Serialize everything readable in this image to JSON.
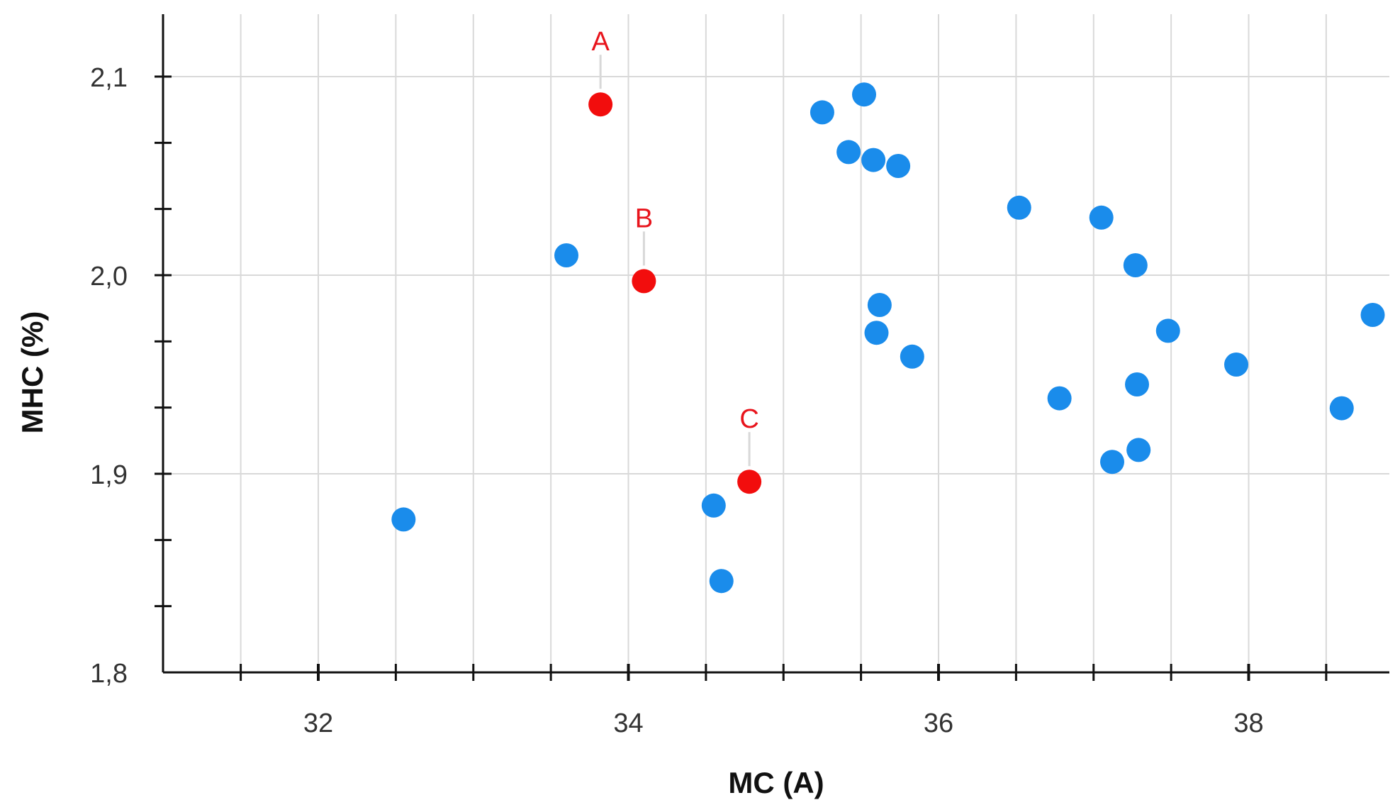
{
  "chart_data": {
    "type": "scatter",
    "xlabel": "MC (A)",
    "ylabel": "MHC (%)",
    "xlim": [
      31,
      38.9
    ],
    "ylim": [
      1.8,
      2.13
    ],
    "x_major_ticks": [
      32,
      34,
      36,
      38
    ],
    "x_tick_labels": [
      "32",
      "34",
      "36",
      "38"
    ],
    "y_major_ticks": [
      1.8,
      1.9,
      2.0,
      2.1
    ],
    "y_tick_labels": [
      "1,8",
      "1,9",
      "2,0",
      "2,1"
    ],
    "grid": true,
    "colors": {
      "series": "#1a8ceb",
      "highlight": "#f20d0d",
      "highlight_text": "#e8141c",
      "grid": "#d9d9d9",
      "axis": "#111111"
    },
    "series": [
      {
        "values": [
          {
            "x": 32.55,
            "y": 1.877
          },
          {
            "x": 33.6,
            "y": 2.01
          },
          {
            "x": 34.55,
            "y": 1.884
          },
          {
            "x": 34.6,
            "y": 1.846
          },
          {
            "x": 35.25,
            "y": 2.082
          },
          {
            "x": 35.42,
            "y": 2.062
          },
          {
            "x": 35.52,
            "y": 2.091
          },
          {
            "x": 35.58,
            "y": 2.058
          },
          {
            "x": 35.6,
            "y": 1.971
          },
          {
            "x": 35.62,
            "y": 1.985
          },
          {
            "x": 35.74,
            "y": 2.055
          },
          {
            "x": 35.83,
            "y": 1.959
          },
          {
            "x": 36.52,
            "y": 2.034
          },
          {
            "x": 36.78,
            "y": 1.938
          },
          {
            "x": 37.05,
            "y": 2.029
          },
          {
            "x": 37.12,
            "y": 1.906
          },
          {
            "x": 37.27,
            "y": 2.005
          },
          {
            "x": 37.28,
            "y": 1.945
          },
          {
            "x": 37.29,
            "y": 1.912
          },
          {
            "x": 37.48,
            "y": 1.972
          },
          {
            "x": 37.92,
            "y": 1.955
          },
          {
            "x": 38.6,
            "y": 1.933
          },
          {
            "x": 38.8,
            "y": 1.98
          }
        ]
      },
      {
        "values": [
          {
            "x": 33.82,
            "y": 2.086,
            "label": "A"
          },
          {
            "x": 34.1,
            "y": 1.997,
            "label": "B"
          },
          {
            "x": 34.78,
            "y": 1.896,
            "label": "C"
          }
        ]
      }
    ]
  }
}
